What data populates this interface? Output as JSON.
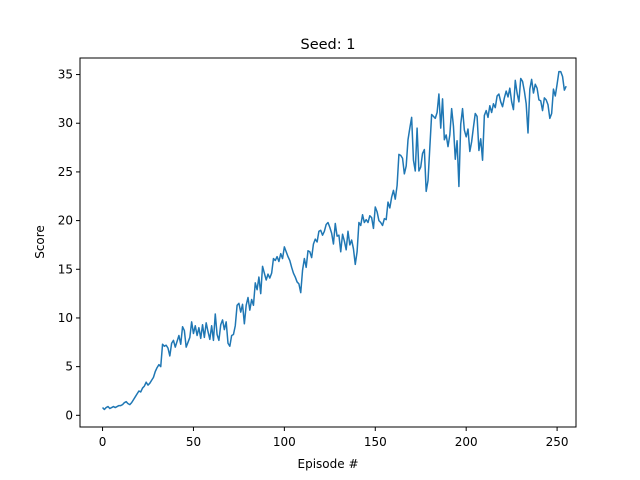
{
  "chart_data": {
    "type": "line",
    "title": "Seed: 1",
    "xlabel": "Episode #",
    "ylabel": "Score",
    "xlim": [
      -12.4,
      260.4
    ],
    "ylim": [
      -1.2,
      36.7
    ],
    "grid": false,
    "xticks": [
      0,
      50,
      100,
      150,
      200,
      250
    ],
    "yticks": [
      0,
      5,
      10,
      15,
      20,
      25,
      30,
      35
    ],
    "series": [
      {
        "name": "",
        "color": "#1f77b4",
        "values": [
          0.8,
          0.6,
          0.8,
          0.9,
          0.7,
          0.8,
          0.9,
          0.8,
          0.9,
          1.0,
          1.0,
          1.1,
          1.3,
          1.4,
          1.2,
          1.1,
          1.3,
          1.6,
          1.9,
          2.2,
          2.5,
          2.4,
          2.8,
          3.0,
          3.4,
          3.1,
          3.3,
          3.6,
          3.9,
          4.5,
          4.9,
          5.2,
          5.0,
          7.3,
          7.1,
          7.2,
          6.9,
          6.1,
          7.4,
          7.7,
          7.0,
          7.6,
          8.2,
          7.3,
          9.1,
          8.7,
          7.0,
          7.5,
          8.0,
          9.6,
          8.4,
          9.2,
          8.2,
          9.0,
          7.9,
          9.3,
          8.0,
          9.5,
          8.6,
          7.8,
          9.2,
          7.7,
          10.4,
          8.3,
          7.7,
          9.3,
          9.8,
          8.8,
          9.6,
          7.4,
          7.1,
          8.2,
          8.3,
          9.2,
          11.3,
          11.5,
          10.6,
          11.4,
          9.4,
          11.3,
          12.1,
          10.8,
          11.9,
          11.3,
          13.6,
          12.9,
          14.2,
          12.5,
          15.3,
          14.6,
          13.9,
          14.5,
          14.1,
          14.6,
          16.1,
          15.9,
          16.3,
          15.8,
          16.6,
          16.1,
          17.3,
          16.8,
          16.3,
          15.9,
          15.2,
          14.6,
          14.2,
          13.7,
          13.5,
          12.6,
          14.9,
          16.1,
          15.2,
          16.9,
          16.8,
          16.2,
          17.6,
          18.1,
          17.8,
          18.9,
          19.0,
          18.5,
          18.9,
          19.6,
          19.8,
          19.3,
          18.7,
          17.6,
          19.7,
          18.4,
          18.5,
          16.8,
          18.6,
          17.9,
          17.0,
          18.9,
          17.5,
          18.0,
          17.1,
          15.5,
          16.8,
          19.8,
          19.5,
          20.6,
          19.8,
          20.1,
          19.8,
          20.5,
          20.3,
          19.2,
          21.4,
          20.9,
          20.0,
          19.8,
          19.5,
          20.2,
          20.1,
          21.9,
          21.3,
          22.4,
          23.1,
          22.2,
          23.6,
          26.8,
          26.7,
          26.4,
          24.8,
          25.6,
          28.3,
          29.5,
          30.6,
          26.2,
          25.1,
          29.5,
          25.1,
          25.5,
          26.9,
          27.3,
          23.0,
          24.1,
          27.5,
          30.9,
          30.7,
          30.5,
          31.1,
          33.0,
          29.5,
          32.5,
          28.3,
          28.8,
          27.6,
          28.8,
          31.5,
          29.7,
          26.3,
          28.2,
          23.5,
          29.9,
          31.5,
          29.3,
          28.6,
          29.4,
          27.1,
          28.1,
          29.6,
          31.0,
          30.7,
          27.2,
          28.4,
          26.2,
          30.8,
          31.3,
          30.6,
          31.8,
          31.1,
          32.0,
          31.6,
          32.8,
          33.0,
          32.2,
          31.7,
          32.6,
          33.3,
          32.7,
          33.6,
          32.2,
          31.4,
          34.4,
          33.1,
          32.2,
          34.6,
          34.3,
          33.3,
          32.0,
          29.0,
          33.5,
          34.5,
          33.1,
          34.0,
          33.6,
          32.4,
          32.3,
          31.3,
          32.6,
          32.4,
          31.9,
          30.5,
          31.0,
          33.5,
          32.8,
          34.0,
          35.3,
          35.3,
          34.8,
          33.4,
          33.8
        ]
      }
    ]
  }
}
